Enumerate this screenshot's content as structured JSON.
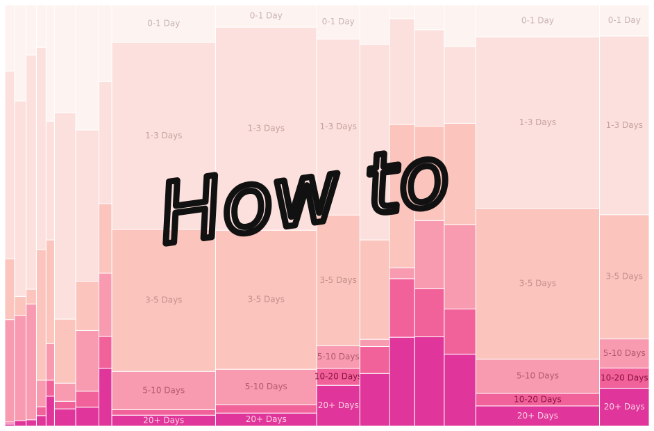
{
  "chart_data": {
    "type": "marimekko",
    "overlay_text": "How to",
    "categories": [
      null,
      null,
      null,
      null,
      null,
      null,
      null,
      null,
      null,
      null,
      null,
      null,
      null,
      null,
      null,
      null,
      null
    ],
    "widths": [
      1.5,
      1.8,
      1.6,
      1.5,
      1.3,
      3.3,
      3.6,
      2.0,
      16.1,
      15.7,
      6.7,
      4.6,
      3.9,
      4.6,
      4.9,
      19.2,
      7.7
    ],
    "xlim": [
      0,
      100
    ],
    "ylim": [
      0,
      100
    ],
    "series": [
      {
        "name": "0-1 Day",
        "color": "#fdf3f1",
        "values": [
          15.7,
          22.8,
          11.9,
          10.1,
          27.6,
          25.6,
          29.7,
          18.2,
          8.9,
          5.3,
          8.1,
          9.4,
          3.3,
          5.9,
          9.9,
          7.6,
          7.4
        ]
      },
      {
        "name": "1-3 Days",
        "color": "#fce0dd",
        "values": [
          44.6,
          46.4,
          55.6,
          48.0,
          28.2,
          49.0,
          35.9,
          29.0,
          44.4,
          48.2,
          41.8,
          46.4,
          25.1,
          22.9,
          18.2,
          40.7,
          42.4
        ]
      },
      {
        "name": "3-5 Days",
        "color": "#fbc4bd",
        "values": [
          14.4,
          4.5,
          3.5,
          31.0,
          24.6,
          15.2,
          11.7,
          16.5,
          33.7,
          33.0,
          31.0,
          23.6,
          34.0,
          22.4,
          24.1,
          35.8,
          29.5
        ]
      },
      {
        "name": "5-10 Days",
        "color": "#f89ab0",
        "values": [
          24.3,
          25.0,
          27.5,
          6.3,
          8.7,
          4.3,
          14.4,
          15.0,
          9.1,
          8.4,
          5.4,
          1.7,
          2.6,
          16.2,
          20.0,
          8.1,
          6.9
        ]
      },
      {
        "name": "10-20 Days",
        "color": "#f2629a",
        "values": [
          0.5,
          0,
          0,
          2.1,
          3.8,
          1.8,
          3.8,
          7.6,
          1.3,
          2.0,
          4.0,
          6.4,
          13.9,
          11.4,
          10.7,
          3.0,
          4.8
        ]
      },
      {
        "name": "20+ Days",
        "color": "#e0359a",
        "values": [
          0.5,
          1.3,
          1.5,
          2.5,
          7.1,
          4.1,
          4.5,
          13.7,
          2.6,
          3.1,
          9.7,
          12.5,
          21.1,
          21.2,
          17.1,
          4.8,
          9.0
        ]
      }
    ]
  }
}
